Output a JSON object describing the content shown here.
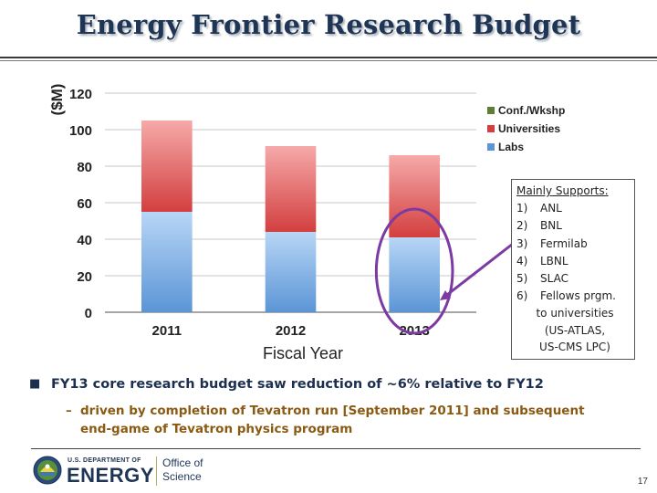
{
  "slide": {
    "title": "Energy Frontier Research Budget",
    "page_number": "17"
  },
  "colors": {
    "title": "#1f3556",
    "labs_top": "#b8d6f6",
    "labs_bottom": "#5b95d6",
    "universities_top": "#f6a9a9",
    "universities_bottom": "#d33f3f",
    "conf": "#5e7d37",
    "highlight_oval": "#7c3aa3",
    "bullet_text": "#1c2f4e",
    "sub_bullet_text": "#8a5a12"
  },
  "chart_data": {
    "type": "bar",
    "stacked": true,
    "categories": [
      "2011",
      "2012",
      "2013"
    ],
    "series": [
      {
        "name": "Labs",
        "values": [
          55,
          44,
          41
        ]
      },
      {
        "name": "Universities",
        "values": [
          50,
          47,
          45
        ]
      },
      {
        "name": "Conf./Wkshp",
        "values": [
          0,
          0,
          0
        ]
      }
    ],
    "legend": [
      "Conf./Wkshp",
      "Universities",
      "Labs"
    ],
    "legend_position": "top-right",
    "ylabel": "($M)",
    "xlabel": "Fiscal Year",
    "ylim": [
      0,
      120
    ],
    "yticks": [
      "0",
      "20",
      "40",
      "60",
      "80",
      "100",
      "120"
    ],
    "grid": true,
    "highlight_category": "2013"
  },
  "callout": {
    "title": "Mainly Supports:",
    "items": [
      {
        "num": "1)",
        "text": "ANL"
      },
      {
        "num": "2)",
        "text": "BNL"
      },
      {
        "num": "3)",
        "text": "Fermilab"
      },
      {
        "num": "4)",
        "text": "LBNL"
      },
      {
        "num": "5)",
        "text": "SLAC"
      },
      {
        "num": "6)",
        "text": "Fellows prgm."
      }
    ],
    "continuation": [
      "to universities",
      "(US-ATLAS,",
      "US-CMS LPC)"
    ]
  },
  "bullets": {
    "main": "FY13 core research budget saw reduction of ~6% relative to FY12",
    "sub": "driven by completion of Tevatron run [September 2011] and subsequent end-game of Tevatron physics program"
  },
  "footer": {
    "doe_small": "U.S. DEPARTMENT OF",
    "doe_big": "ENERGY",
    "office_line1": "Office of",
    "office_line2": "Science"
  }
}
